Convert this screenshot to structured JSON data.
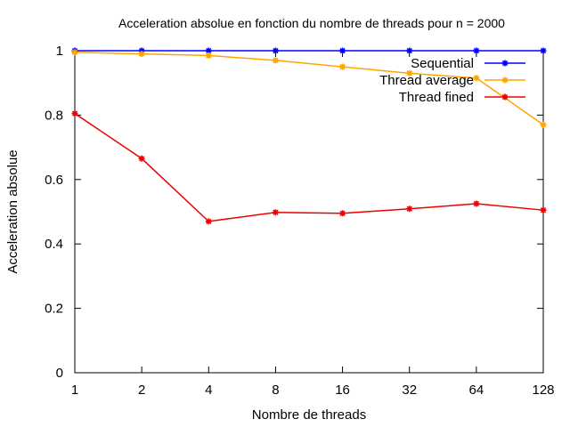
{
  "chart_data": {
    "type": "line",
    "title": "Acceleration absolue en fonction du nombre de threads pour n = 2000",
    "xlabel": "Nombre de threads",
    "ylabel": "Acceleration absolue",
    "x_scale": "log2",
    "categories": [
      "1",
      "2",
      "4",
      "8",
      "16",
      "32",
      "64",
      "128"
    ],
    "x": [
      1,
      2,
      4,
      8,
      16,
      32,
      64,
      128
    ],
    "ylim": [
      0,
      1
    ],
    "yticks": [
      "0",
      "0.2",
      "0.4",
      "0.6",
      "0.8",
      "1"
    ],
    "ytick_values": [
      0,
      0.2,
      0.4,
      0.6,
      0.8,
      1
    ],
    "grid": false,
    "legend_position": "top-right",
    "series": [
      {
        "name": "Sequential",
        "color": "#0000ff",
        "values": [
          1,
          1,
          1,
          1,
          1,
          1,
          1,
          1
        ]
      },
      {
        "name": "Thread average",
        "color": "#ffa500",
        "values": [
          0.995,
          0.99,
          0.985,
          0.97,
          0.95,
          0.93,
          0.915,
          0.77
        ]
      },
      {
        "name": "Thread fined",
        "color": "#ee0000",
        "values": [
          0.805,
          0.665,
          0.47,
          0.498,
          0.495,
          0.509,
          0.525,
          0.505
        ]
      }
    ]
  }
}
